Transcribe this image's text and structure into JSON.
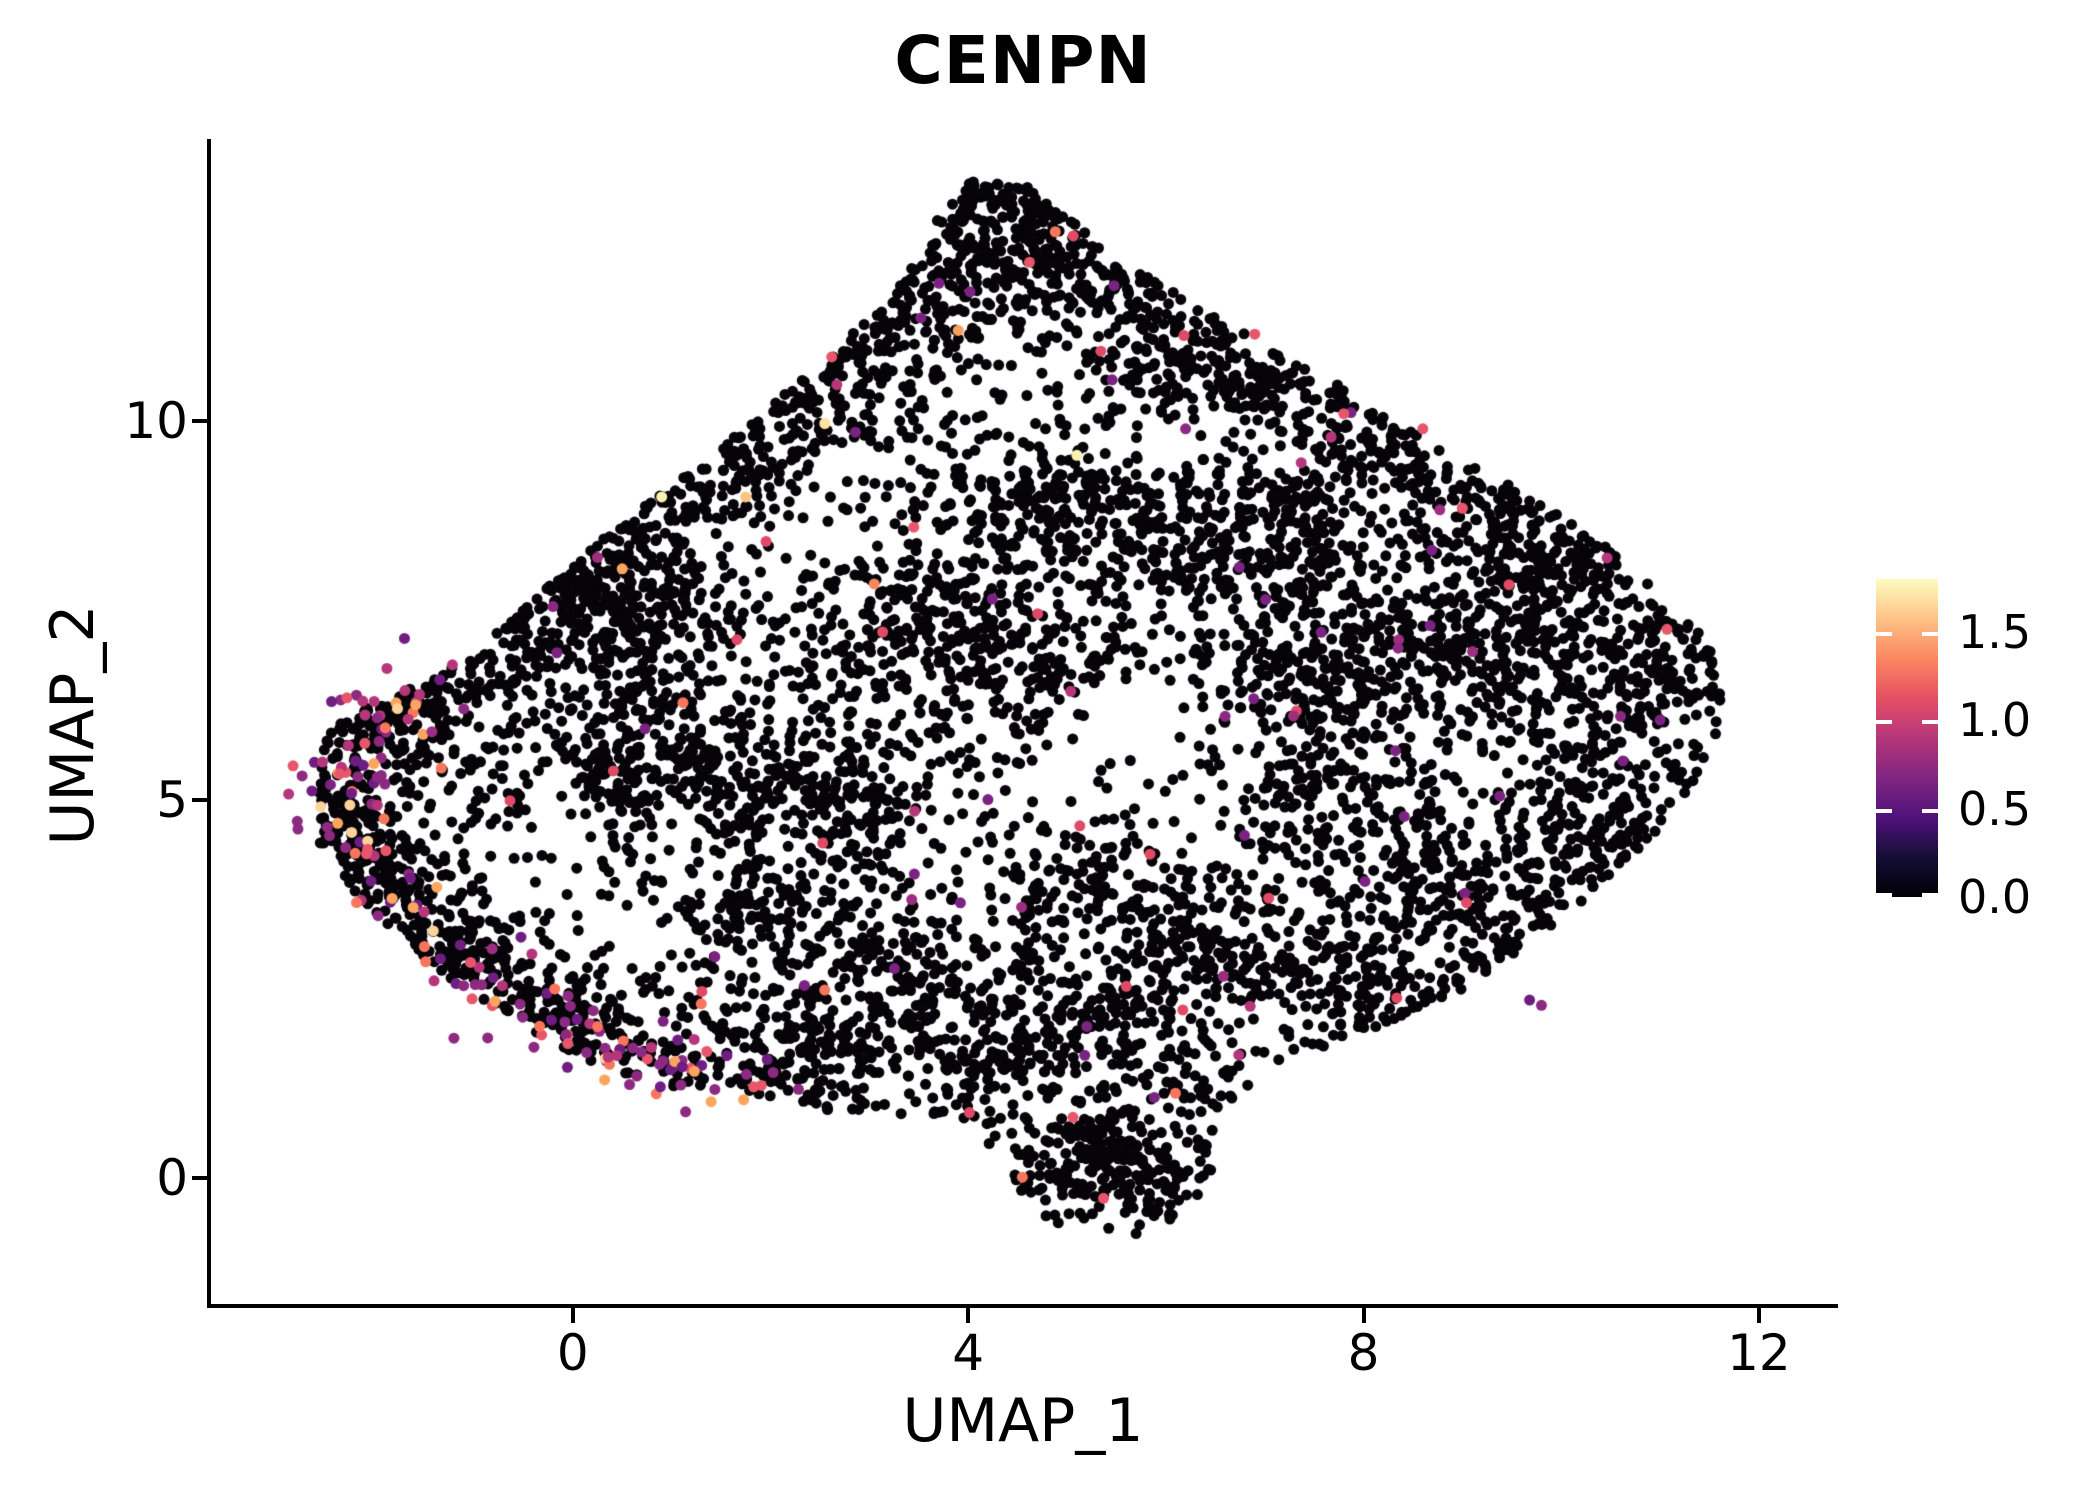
{
  "title": "CENPN",
  "axes": {
    "x": {
      "label": "UMAP_1",
      "ticks": [
        0,
        4,
        8,
        12
      ],
      "range": [
        -3.67,
        12.78
      ]
    },
    "y": {
      "label": "UMAP_2",
      "ticks": [
        0,
        5,
        10
      ],
      "range": [
        -1.68,
        13.73
      ]
    }
  },
  "colorbar": {
    "tick_values": [
      0.0,
      0.5,
      1.0,
      1.5
    ],
    "tick_labels": [
      "0.0",
      "0.5",
      "1.0",
      "1.5"
    ],
    "vmin": 0.0,
    "vmax": 1.8,
    "colormap": "magma",
    "gradient_stops": [
      "#000004",
      "#140e36",
      "#50127b",
      "#812581",
      "#b5367a",
      "#e55064",
      "#fb8761",
      "#fec287",
      "#fcfdbf"
    ]
  },
  "chart_data": {
    "type": "scatter",
    "title": "CENPN",
    "xlabel": "UMAP_1",
    "ylabel": "UMAP_2",
    "x_ticks": [
      0,
      4,
      8,
      12
    ],
    "y_ticks": [
      0,
      5,
      10
    ],
    "x_range": [
      -3.67,
      12.78
    ],
    "y_range": [
      -1.68,
      13.73
    ],
    "legend_values": [
      0.0,
      0.5,
      1.0,
      1.5
    ],
    "expression_range": [
      0,
      1.8
    ],
    "zero_expression_color": "#060409",
    "point_radius_px": 5.5,
    "n_points_approx": 8000,
    "cloud": {
      "seed": 1337,
      "base_count": 3300,
      "boundary": [
        [
          4.0,
          13.2
        ],
        [
          4.6,
          13.1
        ],
        [
          5.0,
          12.7
        ],
        [
          5.6,
          12.1
        ],
        [
          6.2,
          11.6
        ],
        [
          6.9,
          11.1
        ],
        [
          7.6,
          10.6
        ],
        [
          8.3,
          10.0
        ],
        [
          9.0,
          9.5
        ],
        [
          9.7,
          9.0
        ],
        [
          10.4,
          8.4
        ],
        [
          11.0,
          7.8
        ],
        [
          11.45,
          7.2
        ],
        [
          11.62,
          6.6
        ],
        [
          11.62,
          6.0
        ],
        [
          11.45,
          5.4
        ],
        [
          11.1,
          4.8
        ],
        [
          10.7,
          4.2
        ],
        [
          10.2,
          3.6
        ],
        [
          9.6,
          3.0
        ],
        [
          9.0,
          2.5
        ],
        [
          8.3,
          2.1
        ],
        [
          7.6,
          1.7
        ],
        [
          7.0,
          1.35
        ],
        [
          6.7,
          1.0
        ],
        [
          6.55,
          0.5
        ],
        [
          6.45,
          0.0
        ],
        [
          6.2,
          -0.45
        ],
        [
          5.8,
          -0.72
        ],
        [
          5.3,
          -0.8
        ],
        [
          4.85,
          -0.6
        ],
        [
          4.55,
          -0.2
        ],
        [
          4.3,
          0.3
        ],
        [
          4.05,
          0.7
        ],
        [
          3.5,
          0.75
        ],
        [
          2.8,
          0.85
        ],
        [
          2.0,
          1.0
        ],
        [
          1.3,
          1.15
        ],
        [
          0.6,
          1.3
        ],
        [
          0.0,
          1.65
        ],
        [
          -0.6,
          2.1
        ],
        [
          -1.2,
          2.6
        ],
        [
          -1.75,
          3.2
        ],
        [
          -2.25,
          3.85
        ],
        [
          -2.6,
          4.5
        ],
        [
          -2.72,
          5.1
        ],
        [
          -2.6,
          5.7
        ],
        [
          -2.3,
          6.1
        ],
        [
          -1.85,
          6.35
        ],
        [
          -1.4,
          6.6
        ],
        [
          -0.95,
          7.0
        ],
        [
          -0.5,
          7.5
        ],
        [
          -0.05,
          8.05
        ],
        [
          0.45,
          8.6
        ],
        [
          0.95,
          9.1
        ],
        [
          1.5,
          9.65
        ],
        [
          2.05,
          10.25
        ],
        [
          2.6,
          10.85
        ],
        [
          3.1,
          11.5
        ],
        [
          3.5,
          12.2
        ],
        [
          3.75,
          12.8
        ]
      ],
      "holes": [
        [
          1.9,
          7.0,
          1.2,
          0.95,
          0.22
        ],
        [
          0.15,
          4.0,
          1.05,
          1.25,
          0.3
        ],
        [
          5.9,
          5.5,
          1.25,
          1.05,
          0.3
        ],
        [
          9.55,
          4.9,
          0.85,
          0.8,
          0.35
        ],
        [
          4.0,
          4.3,
          0.8,
          0.9,
          0.45
        ],
        [
          2.9,
          8.9,
          0.85,
          0.75,
          0.45
        ],
        [
          6.3,
          9.6,
          0.9,
          0.65,
          0.5
        ],
        [
          4.5,
          10.6,
          0.7,
          0.6,
          0.55
        ],
        [
          8.4,
          8.6,
          0.6,
          0.5,
          0.6
        ],
        [
          10.7,
          6.2,
          0.45,
          0.55,
          0.5
        ],
        [
          4.9,
          2.7,
          0.6,
          0.45,
          0.5
        ],
        [
          6.9,
          1.9,
          0.5,
          0.4,
          0.5
        ],
        [
          2.2,
          2.9,
          0.5,
          0.4,
          0.6
        ],
        [
          0.7,
          6.3,
          0.5,
          0.45,
          0.5
        ],
        [
          3.4,
          5.6,
          0.6,
          0.5,
          0.55
        ],
        [
          7.4,
          7.3,
          0.5,
          0.45,
          0.6
        ],
        [
          8.5,
          5.6,
          0.5,
          0.45,
          0.6
        ],
        [
          1.5,
          8.3,
          0.6,
          0.5,
          0.5
        ]
      ],
      "dense_blobs": [
        [
          4.4,
          12.7,
          0.5,
          0.45,
          150
        ],
        [
          3.6,
          12.0,
          0.45,
          0.4,
          100
        ],
        [
          5.3,
          11.9,
          0.5,
          0.4,
          110
        ],
        [
          2.8,
          11.1,
          0.5,
          0.45,
          110
        ],
        [
          6.3,
          11.0,
          0.5,
          0.4,
          100
        ],
        [
          2.1,
          10.3,
          0.45,
          0.4,
          90
        ],
        [
          7.0,
          10.4,
          0.5,
          0.4,
          90
        ],
        [
          1.4,
          9.6,
          0.45,
          0.4,
          90
        ],
        [
          8.2,
          9.6,
          0.55,
          0.45,
          110
        ],
        [
          0.8,
          8.9,
          0.45,
          0.4,
          90
        ],
        [
          9.3,
          8.7,
          0.5,
          0.45,
          100
        ],
        [
          10.1,
          8.0,
          0.45,
          0.4,
          90
        ],
        [
          -0.5,
          7.4,
          0.55,
          0.4,
          150
        ],
        [
          0.3,
          7.9,
          0.5,
          0.4,
          110
        ],
        [
          -1.3,
          6.8,
          0.4,
          0.35,
          90
        ],
        [
          0.9,
          7.3,
          0.45,
          0.4,
          90
        ],
        [
          0.45,
          5.4,
          0.4,
          0.55,
          110
        ],
        [
          1.1,
          6.2,
          0.45,
          0.45,
          80
        ],
        [
          1.7,
          5.3,
          0.45,
          0.45,
          70
        ],
        [
          2.6,
          4.9,
          0.5,
          0.5,
          90
        ],
        [
          2.0,
          3.6,
          0.55,
          0.5,
          100
        ],
        [
          3.0,
          6.9,
          0.55,
          0.5,
          100
        ],
        [
          4.3,
          7.3,
          0.55,
          0.5,
          110
        ],
        [
          4.8,
          8.9,
          0.65,
          0.4,
          130
        ],
        [
          6.1,
          8.6,
          0.6,
          0.4,
          120
        ],
        [
          7.3,
          8.1,
          0.55,
          0.45,
          110
        ],
        [
          3.2,
          2.5,
          0.6,
          0.45,
          120
        ],
        [
          2.3,
          1.7,
          0.5,
          0.35,
          100
        ],
        [
          4.3,
          1.7,
          0.6,
          0.4,
          110
        ],
        [
          5.4,
          2.3,
          0.5,
          0.45,
          100
        ],
        [
          6.4,
          3.1,
          0.55,
          0.5,
          100
        ],
        [
          5.0,
          3.6,
          0.5,
          0.5,
          80
        ],
        [
          8.6,
          6.7,
          0.65,
          0.55,
          130
        ],
        [
          9.6,
          7.3,
          0.5,
          0.45,
          100
        ],
        [
          7.8,
          5.2,
          0.6,
          0.5,
          100
        ],
        [
          8.9,
          3.8,
          0.6,
          0.45,
          110
        ],
        [
          9.9,
          4.6,
          0.45,
          0.4,
          80
        ],
        [
          10.3,
          5.9,
          0.5,
          0.5,
          100
        ],
        [
          11.0,
          6.7,
          0.4,
          0.4,
          90
        ],
        [
          7.2,
          6.6,
          0.5,
          0.5,
          90
        ],
        [
          7.9,
          2.6,
          0.5,
          0.4,
          90
        ],
        [
          9.7,
          2.9,
          0.4,
          0.35,
          70
        ],
        [
          10.7,
          4.2,
          0.4,
          0.35,
          70
        ],
        [
          5.3,
          0.3,
          0.5,
          0.4,
          130
        ],
        [
          5.8,
          -0.1,
          0.35,
          0.25,
          50
        ],
        [
          -2.1,
          5.6,
          0.35,
          0.4,
          80
        ],
        [
          -2.2,
          4.7,
          0.3,
          0.4,
          70
        ],
        [
          -1.8,
          3.9,
          0.32,
          0.38,
          70
        ],
        [
          -1.2,
          3.0,
          0.35,
          0.35,
          70
        ],
        [
          -0.5,
          2.3,
          0.4,
          0.3,
          70
        ],
        [
          0.2,
          1.8,
          0.45,
          0.28,
          70
        ],
        [
          -1.5,
          6.2,
          0.35,
          0.3,
          60
        ]
      ],
      "expressing_arc": {
        "path": [
          [
            -1.55,
            6.45
          ],
          [
            -2.0,
            6.0
          ],
          [
            -2.35,
            5.5
          ],
          [
            -2.45,
            5.0
          ],
          [
            -2.35,
            4.5
          ],
          [
            -2.05,
            3.95
          ],
          [
            -1.6,
            3.35
          ],
          [
            -1.1,
            2.8
          ],
          [
            -0.55,
            2.3
          ],
          [
            0.0,
            1.9
          ],
          [
            0.6,
            1.6
          ],
          [
            1.2,
            1.42
          ],
          [
            1.8,
            1.3
          ]
        ],
        "count": 165,
        "jitter": 0.25,
        "palette": [
          [
            "#8c2981",
            0.33
          ],
          [
            "#6f1d81",
            0.17
          ],
          [
            "#b5367a",
            0.15
          ],
          [
            "#e8566b",
            0.13
          ],
          [
            "#f8765c",
            0.09
          ],
          [
            "#fca55f",
            0.08
          ],
          [
            "#fdd39a",
            0.05
          ]
        ]
      },
      "expressing_scatter": {
        "count": 80,
        "palette": [
          [
            "#7b2382",
            0.42
          ],
          [
            "#9c2e7f",
            0.18
          ],
          [
            "#e04a66",
            0.22
          ],
          [
            "#f8765c",
            0.1
          ],
          [
            "#b5367a",
            0.08
          ]
        ]
      },
      "expressing_fixed": [
        [
          9.68,
          2.35,
          "#6d1d80"
        ],
        [
          9.8,
          2.28,
          "#8c2981"
        ],
        [
          5.06,
          0.8,
          "#e8566b"
        ],
        [
          5.37,
          -0.27,
          "#e8566b"
        ],
        [
          5.18,
          1.62,
          "#7b2382"
        ],
        [
          11.07,
          7.25,
          "#e8566b"
        ],
        [
          2.62,
          10.85,
          "#e8566b"
        ],
        [
          3.9,
          11.2,
          "#f8a05f"
        ],
        [
          2.55,
          9.97,
          "#fde0a2"
        ],
        [
          6.9,
          11.15,
          "#e8566b"
        ],
        [
          4.62,
          12.1,
          "#e8566b"
        ],
        [
          8.6,
          9.9,
          "#e8566b"
        ],
        [
          1.75,
          9.0,
          "#fdc480"
        ],
        [
          0.5,
          8.05,
          "#fca55f"
        ],
        [
          -0.2,
          7.55,
          "#8c2981"
        ],
        [
          6.2,
          9.9,
          "#8c2981"
        ],
        [
          5.1,
          9.55,
          "#fcf1b2"
        ],
        [
          3.45,
          8.6,
          "#e8566b"
        ],
        [
          3.05,
          7.85,
          "#f8875f"
        ],
        [
          8.35,
          7.0,
          "#8c2981"
        ],
        [
          10.6,
          6.1,
          "#8c2981"
        ],
        [
          11.0,
          6.05,
          "#7b2382"
        ],
        [
          9.0,
          8.85,
          "#e8566b"
        ],
        [
          7.8,
          10.1,
          "#e8566b"
        ],
        [
          0.9,
          9.0,
          "#fcf1b2"
        ],
        [
          4.2,
          5.0,
          "#7b2382"
        ],
        [
          6.6,
          6.1,
          "#8c2981"
        ],
        [
          1.3,
          2.3,
          "#f8765c"
        ]
      ]
    }
  }
}
